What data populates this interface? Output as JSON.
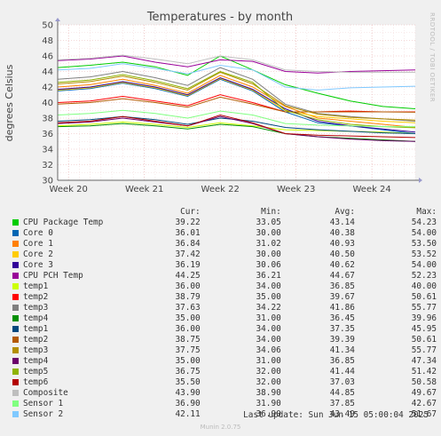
{
  "chart_data": {
    "type": "line",
    "title": "Temperatures - by month",
    "ylabel": "degrees Celsius",
    "xlabel": "",
    "ylim": [
      30,
      50
    ],
    "yticks": [
      30,
      32,
      34,
      36,
      38,
      40,
      42,
      44,
      46,
      48,
      50
    ],
    "x_tick_labels": [
      "Week 20",
      "Week 21",
      "Week 22",
      "Week 23",
      "Week 24"
    ],
    "x_range_days": [
      0,
      33
    ],
    "x_tick_days": [
      1,
      8,
      15,
      22,
      29
    ],
    "gap_days": [
      14.7,
      15.2
    ],
    "grid": true,
    "watermark": "RRDTOOL / TOBI OETIKER",
    "legend_header": {
      "cur": "Cur:",
      "min": "Min:",
      "avg": "Avg:",
      "max": "Max:"
    },
    "series": [
      {
        "name": "CPU Package Temp",
        "color": "#00cc00",
        "cur": "39.22",
        "min": "33.05",
        "avg": "43.14",
        "max": "54.23",
        "values": [
          44.5,
          44.8,
          45.2,
          44.6,
          43.5,
          46.0,
          44.2,
          42.3,
          41.2,
          40.2,
          39.5,
          39.2
        ]
      },
      {
        "name": "Core 0",
        "color": "#0066b3",
        "cur": "36.01",
        "min": "30.00",
        "avg": "40.38",
        "max": "54.00",
        "values": [
          41.5,
          41.8,
          42.5,
          41.8,
          40.8,
          43.0,
          41.5,
          38.8,
          37.4,
          37.0,
          36.5,
          36.0
        ]
      },
      {
        "name": "Core 1",
        "color": "#ff8000",
        "cur": "36.84",
        "min": "31.02",
        "avg": "40.93",
        "max": "53.50",
        "values": [
          42.0,
          42.3,
          43.0,
          42.2,
          41.2,
          43.5,
          42.0,
          39.5,
          38.0,
          37.6,
          37.2,
          36.8
        ]
      },
      {
        "name": "Core 2",
        "color": "#ffcc00",
        "cur": "37.42",
        "min": "30.00",
        "avg": "40.50",
        "max": "53.52",
        "values": [
          41.6,
          41.9,
          42.6,
          41.9,
          40.9,
          43.1,
          41.6,
          39.0,
          38.2,
          37.9,
          37.6,
          37.4
        ]
      },
      {
        "name": "Core 3",
        "color": "#330099",
        "cur": "36.19",
        "min": "30.06",
        "avg": "40.62",
        "max": "54.00",
        "values": [
          41.7,
          42.0,
          42.7,
          42.0,
          41.0,
          43.2,
          41.7,
          39.2,
          37.6,
          37.0,
          36.6,
          36.2
        ]
      },
      {
        "name": "CPU PCH Temp",
        "color": "#990099",
        "cur": "44.25",
        "min": "36.21",
        "avg": "44.67",
        "max": "52.23",
        "values": [
          45.4,
          45.6,
          46.0,
          45.2,
          44.6,
          45.5,
          45.3,
          44.0,
          43.8,
          44.0,
          44.1,
          44.2
        ]
      },
      {
        "name": "temp1",
        "color": "#ccff00",
        "cur": "36.00",
        "min": "34.00",
        "avg": "36.85",
        "max": "40.00",
        "values": [
          37.0,
          37.2,
          37.5,
          37.2,
          36.8,
          37.4,
          37.0,
          36.5,
          36.4,
          36.3,
          36.2,
          36.0
        ]
      },
      {
        "name": "temp2",
        "color": "#ff0000",
        "cur": "38.79",
        "min": "35.00",
        "avg": "39.67",
        "max": "50.61",
        "values": [
          40.0,
          40.2,
          40.8,
          40.2,
          39.6,
          41.0,
          40.0,
          38.8,
          38.8,
          38.9,
          38.8,
          38.8
        ]
      },
      {
        "name": "temp3",
        "color": "#808080",
        "cur": "37.63",
        "min": "34.22",
        "avg": "41.86",
        "max": "55.77",
        "values": [
          43.0,
          43.3,
          44.0,
          43.2,
          42.2,
          44.5,
          43.0,
          39.8,
          38.6,
          38.2,
          37.9,
          37.6
        ]
      },
      {
        "name": "temp4",
        "color": "#008f00",
        "cur": "35.00",
        "min": "31.00",
        "avg": "36.45",
        "max": "39.96",
        "values": [
          36.9,
          37.0,
          37.3,
          37.0,
          36.6,
          37.2,
          36.9,
          36.0,
          35.6,
          35.4,
          35.2,
          35.0
        ]
      },
      {
        "name": "temp1",
        "color": "#00487d",
        "cur": "36.00",
        "min": "34.00",
        "avg": "37.35",
        "max": "45.95",
        "values": [
          37.6,
          37.8,
          38.2,
          37.8,
          37.2,
          38.0,
          37.6,
          36.8,
          36.5,
          36.3,
          36.1,
          36.0
        ]
      },
      {
        "name": "temp2",
        "color": "#b35a00",
        "cur": "38.75",
        "min": "34.00",
        "avg": "39.39",
        "max": "50.61",
        "values": [
          39.8,
          40.0,
          40.5,
          40.0,
          39.4,
          40.7,
          39.8,
          38.8,
          38.8,
          38.8,
          38.8,
          38.75
        ]
      },
      {
        "name": "temp3",
        "color": "#b38f00",
        "cur": "37.75",
        "min": "34.06",
        "avg": "41.34",
        "max": "55.77",
        "values": [
          42.4,
          42.7,
          43.4,
          42.6,
          41.6,
          43.9,
          42.4,
          39.6,
          38.5,
          38.1,
          37.9,
          37.75
        ]
      },
      {
        "name": "temp4",
        "color": "#6b006b",
        "cur": "35.00",
        "min": "31.00",
        "avg": "36.85",
        "max": "47.34",
        "values": [
          37.3,
          37.5,
          38.0,
          37.5,
          37.0,
          38.2,
          37.3,
          36.0,
          35.6,
          35.3,
          35.1,
          35.0
        ]
      },
      {
        "name": "temp5",
        "color": "#8fb300",
        "cur": "36.75",
        "min": "32.00",
        "avg": "41.44",
        "max": "51.42",
        "values": [
          42.6,
          42.9,
          43.6,
          42.8,
          41.8,
          44.0,
          42.6,
          39.0,
          37.8,
          37.2,
          36.9,
          36.75
        ]
      },
      {
        "name": "temp6",
        "color": "#b30000",
        "cur": "35.50",
        "min": "32.00",
        "avg": "37.03",
        "max": "50.58",
        "values": [
          37.4,
          37.6,
          38.2,
          37.6,
          37.0,
          38.4,
          37.4,
          36.0,
          35.8,
          35.7,
          35.6,
          35.5
        ]
      },
      {
        "name": "Composite",
        "color": "#bebebe",
        "cur": "43.90",
        "min": "38.90",
        "avg": "44.85",
        "max": "49.67",
        "values": [
          45.5,
          45.7,
          46.1,
          45.6,
          45.0,
          46.0,
          45.5,
          44.2,
          44.0,
          43.9,
          43.9,
          43.9
        ]
      },
      {
        "name": "Sensor 1",
        "color": "#80ff80",
        "cur": "36.90",
        "min": "31.90",
        "avg": "37.85",
        "max": "42.67",
        "values": [
          38.4,
          38.6,
          39.0,
          38.6,
          38.0,
          38.9,
          38.4,
          37.3,
          37.1,
          37.0,
          36.9,
          36.9
        ]
      },
      {
        "name": "Sensor 2",
        "color": "#80c9ff",
        "cur": "42.11",
        "min": "36.90",
        "avg": "43.49",
        "max": "51.67",
        "values": [
          44.2,
          44.4,
          45.0,
          44.4,
          43.7,
          44.8,
          44.2,
          42.0,
          41.6,
          41.9,
          42.0,
          42.1
        ]
      }
    ]
  },
  "footer": {
    "last_update": "Last update: Sun Jun 15 05:00:04 2025",
    "version": "Munin 2.0.75"
  }
}
